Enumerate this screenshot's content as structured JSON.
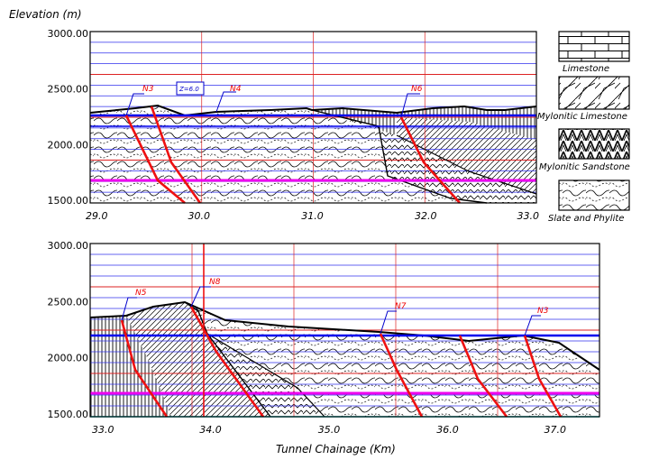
{
  "figure": {
    "y_axis_label": "Elevation  (m)",
    "x_axis_label": "Tunnel  Chainage  (Km)"
  },
  "top_profile": {
    "y_ticks": [
      "3000.00",
      "2500.00",
      "2000.00",
      "1500.00"
    ],
    "x_ticks": [
      "29.0",
      "30.0",
      "31.0",
      "32.0",
      "33.0"
    ],
    "faults": [
      "N3",
      "N4",
      "N6"
    ],
    "annotation": "Z=6.0"
  },
  "bottom_profile": {
    "y_ticks": [
      "3000.00",
      "2500.00",
      "2000.00",
      "1500.00"
    ],
    "x_ticks": [
      "33.0",
      "34.0",
      "35.0",
      "36.0",
      "37.0"
    ],
    "faults": [
      "N5",
      "N8",
      "N7",
      "N3"
    ]
  },
  "legend": [
    {
      "label": "Limestone"
    },
    {
      "label": "Mylonitic  Limestone"
    },
    {
      "label": "Mylonitic  Sandstone"
    },
    {
      "label": "Slate  and  Phylite"
    }
  ],
  "colors": {
    "grid_blue": "#3030ee",
    "grid_red": "#dd2222",
    "fault_red": "#ee1111",
    "tunnel_blue": "#0000ee",
    "contact_magenta": "#ee00ee",
    "label_red": "#ee0000"
  }
}
